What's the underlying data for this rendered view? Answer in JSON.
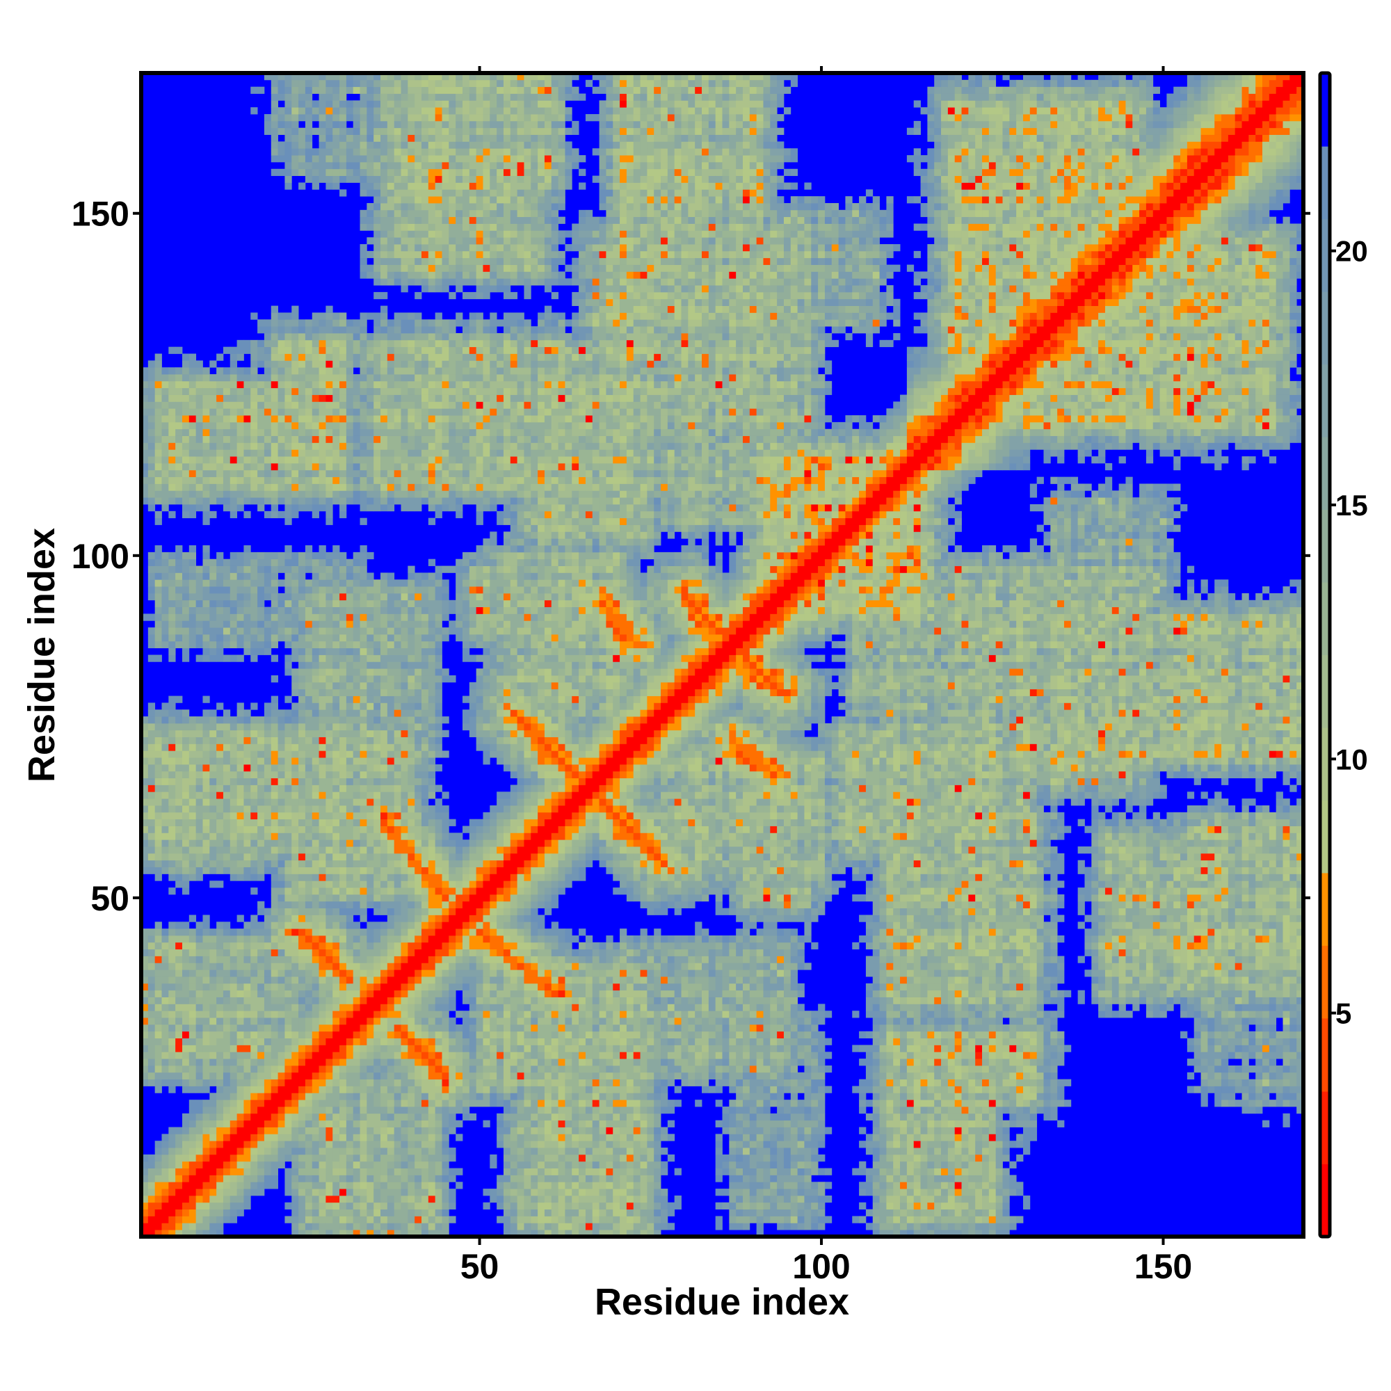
{
  "chart_data": {
    "type": "heatmap",
    "title": "",
    "xlabel": "Residue index",
    "ylabel": "Residue index",
    "n_residues": 170,
    "xlim": [
      0.5,
      170.5
    ],
    "ylim": [
      0.5,
      170.5
    ],
    "x_ticks": [
      {
        "value": 50,
        "label": "50"
      },
      {
        "value": 100,
        "label": "100"
      },
      {
        "value": 150,
        "label": "150"
      }
    ],
    "y_ticks": [
      {
        "value": 50,
        "label": "50"
      },
      {
        "value": 100,
        "label": "100"
      },
      {
        "value": 150,
        "label": "150"
      }
    ],
    "colorbar": {
      "range": [
        0.6,
        23.5
      ],
      "ticks": [
        {
          "value": 5,
          "label": "5"
        },
        {
          "value": 10,
          "label": "10"
        },
        {
          "value": 15,
          "label": "15"
        },
        {
          "value": 20,
          "label": "20"
        }
      ],
      "bin_edges": [
        0.6,
        2.03,
        3.46,
        4.9,
        6.33,
        7.76,
        9.19,
        10.62,
        12.05,
        13.48,
        14.91,
        16.34,
        17.77,
        19.2,
        20.63,
        22.06,
        23.5
      ],
      "bin_colors": [
        "#ff0000",
        "#ff2000",
        "#ff4a00",
        "#ff7000",
        "#ff9200",
        "#b3c886",
        "#adc28a",
        "#a4bc90",
        "#9ab594",
        "#92ae9a",
        "#8aa8a0",
        "#82a2a8",
        "#7a9cae",
        "#7296b4",
        "#6a90ba",
        "#0000ff"
      ]
    },
    "symmetric": true,
    "diagonal_model": {
      "distance_per_residue": 1.9,
      "helix_region_start": 113,
      "helix_distance_per_residue": 1.35
    },
    "sheet_contacts": [
      {
        "from": [
          24,
          45
        ],
        "to": [
          31,
          38
        ],
        "min_distance": 4.2
      },
      {
        "from": [
          36,
          61
        ],
        "to": [
          45,
          50
        ],
        "min_distance": 4.2
      },
      {
        "from": [
          55,
          77
        ],
        "to": [
          64,
          68
        ],
        "min_distance": 4.2
      },
      {
        "from": [
          68,
          93
        ],
        "to": [
          73,
          87
        ],
        "min_distance": 4.6
      },
      {
        "from": [
          80,
          94
        ],
        "to": [
          85,
          89
        ],
        "min_distance": 4.4
      }
    ],
    "contact_regions": [
      {
        "i": [
          3,
          30
        ],
        "j": [
          110,
          125
        ],
        "base": 12
      },
      {
        "i": [
          21,
          30
        ],
        "j": [
          116,
          131
        ],
        "base": 11
      },
      {
        "i": [
          35,
          61
        ],
        "j": [
          110,
          131
        ],
        "base": 12
      },
      {
        "i": [
          37,
          58
        ],
        "j": [
          142,
          170
        ],
        "base": 12
      },
      {
        "i": [
          71,
          79
        ],
        "j": [
          135,
          170
        ],
        "base": 11.5
      },
      {
        "i": [
          67,
          93
        ],
        "j": [
          120,
          147
        ],
        "base": 13
      },
      {
        "i": [
          57,
          74
        ],
        "j": [
          103,
          118
        ],
        "base": 12
      },
      {
        "i": [
          1,
          17
        ],
        "j": [
          56,
          74
        ],
        "base": 12
      },
      {
        "i": [
          1,
          23
        ],
        "j": [
          25,
          43
        ],
        "base": 13
      },
      {
        "i": [
          23,
          40
        ],
        "j": [
          51,
          74
        ],
        "base": 12
      },
      {
        "i": [
          3,
          32
        ],
        "j": [
          87,
          99
        ],
        "base": 18
      },
      {
        "i": [
          53,
          70
        ],
        "j": [
          77,
          100
        ],
        "base": 13
      },
      {
        "i": [
          23,
          36
        ],
        "j": [
          156,
          170
        ],
        "base": 18
      },
      {
        "i": [
          38,
          60
        ],
        "j": [
          155,
          170
        ],
        "base": 12
      },
      {
        "i": [
          73,
          91
        ],
        "j": [
          147,
          170
        ],
        "base": 13
      },
      {
        "i": [
          77,
          98
        ],
        "j": [
          105,
          147
        ],
        "base": 14
      },
      {
        "i": [
          20,
          31
        ],
        "j": [
          160,
          170
        ],
        "base": 18
      },
      {
        "i": [
          51,
          74
        ],
        "j": [
          110,
          130
        ],
        "base": 12
      },
      {
        "i": [
          90,
          108
        ],
        "j": [
          134,
          150
        ],
        "base": 16
      },
      {
        "i": [
          119,
          146
        ],
        "j": [
          125,
          166
        ],
        "base": 11
      },
      {
        "i": [
          92,
          112
        ],
        "j": [
          95,
          115
        ],
        "base": 9.5
      },
      {
        "i": [
          49,
          68
        ],
        "j": [
          89,
          97
        ],
        "base": 13
      },
      {
        "i": [
          1,
          21
        ],
        "j": [
          57,
          74
        ],
        "base": 12
      },
      {
        "i": [
          5,
          31
        ],
        "j": [
          88,
          97
        ],
        "base": 18
      },
      {
        "i": [
          25,
          42
        ],
        "j": [
          71,
          95
        ],
        "base": 14.5
      },
      {
        "i": [
          21,
          35
        ],
        "j": [
          57,
          71
        ],
        "base": 13
      }
    ]
  }
}
